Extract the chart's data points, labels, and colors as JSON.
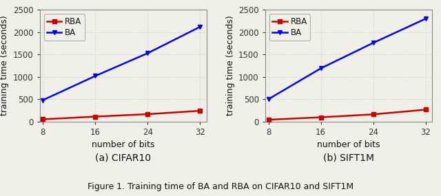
{
  "x": [
    8,
    16,
    24,
    32
  ],
  "cifar10": {
    "RBA": [
      50,
      110,
      165,
      240
    ],
    "BA": [
      480,
      1020,
      1530,
      2120
    ]
  },
  "sift1m": {
    "RBA": [
      40,
      95,
      160,
      265
    ],
    "BA": [
      500,
      1190,
      1760,
      2300
    ]
  },
  "rba_color": "#cc0000",
  "ba_color": "#0000ee",
  "rba_marker": "s",
  "ba_marker": "v",
  "ylim": [
    0,
    2500
  ],
  "yticks": [
    0,
    500,
    1000,
    1500,
    2000,
    2500
  ],
  "xticks": [
    8,
    16,
    24,
    32
  ],
  "xlabel": "number of bits",
  "ylabel": "training time (seconds)",
  "subtitle_left": "(a) CIFAR10",
  "subtitle_right": "(b) SIFT1M",
  "figure_caption": "Figure 1. Training time of BA and RBA on CIFAR10 and SIFT1M",
  "linewidth": 1.8,
  "markersize": 5,
  "bg_color": "#f0efe8",
  "grid_color": "#cccccc",
  "grid_linestyle": ":",
  "grid_alpha": 1.0
}
